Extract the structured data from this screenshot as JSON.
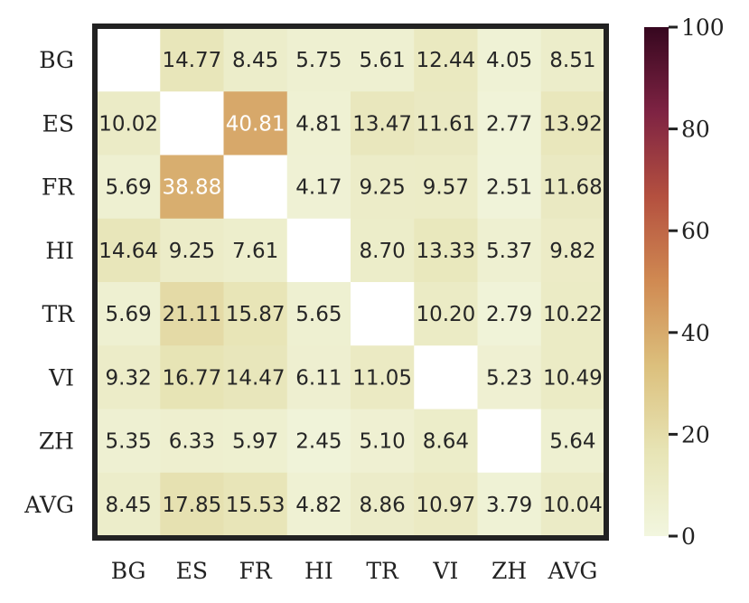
{
  "chart_data": {
    "type": "heatmap",
    "title": "",
    "xlabel": "",
    "ylabel": "",
    "rows": [
      "BG",
      "ES",
      "FR",
      "HI",
      "TR",
      "VI",
      "ZH",
      "AVG"
    ],
    "cols": [
      "BG",
      "ES",
      "FR",
      "HI",
      "TR",
      "VI",
      "ZH",
      "AVG"
    ],
    "values": [
      [
        null,
        14.77,
        8.45,
        5.75,
        5.61,
        12.44,
        4.05,
        8.51
      ],
      [
        10.02,
        null,
        40.81,
        4.81,
        13.47,
        11.61,
        2.77,
        13.92
      ],
      [
        5.69,
        38.88,
        null,
        4.17,
        9.25,
        9.57,
        2.51,
        11.68
      ],
      [
        14.64,
        9.25,
        7.61,
        null,
        8.7,
        13.33,
        5.37,
        9.82
      ],
      [
        5.69,
        21.11,
        15.87,
        5.65,
        null,
        10.2,
        2.79,
        10.22
      ],
      [
        9.32,
        16.77,
        14.47,
        6.11,
        11.05,
        null,
        5.23,
        10.49
      ],
      [
        5.35,
        6.33,
        5.97,
        2.45,
        5.1,
        8.64,
        null,
        5.64
      ],
      [
        8.45,
        17.85,
        15.53,
        4.82,
        8.86,
        10.97,
        3.79,
        10.04
      ]
    ],
    "value_labels": [
      [
        null,
        "14.77",
        "8.45",
        "5.75",
        "5.61",
        "12.44",
        "4.05",
        "8.51"
      ],
      [
        "10.02",
        null,
        "40.81",
        "4.81",
        "13.47",
        "11.61",
        "2.77",
        "13.92"
      ],
      [
        "5.69",
        "38.88",
        null,
        "4.17",
        "9.25",
        "9.57",
        "2.51",
        "11.68"
      ],
      [
        "14.64",
        "9.25",
        "7.61",
        null,
        "8.70",
        "13.33",
        "5.37",
        "9.82"
      ],
      [
        "5.69",
        "21.11",
        "15.87",
        "5.65",
        null,
        "10.20",
        "2.79",
        "10.22"
      ],
      [
        "9.32",
        "16.77",
        "14.47",
        "6.11",
        "11.05",
        null,
        "5.23",
        "10.49"
      ],
      [
        "5.35",
        "6.33",
        "5.97",
        "2.45",
        "5.10",
        "8.64",
        null,
        "5.64"
      ],
      [
        "8.45",
        "17.85",
        "15.53",
        "4.82",
        "8.86",
        "10.97",
        "3.79",
        "10.04"
      ]
    ],
    "colorbar": {
      "range": [
        0,
        100
      ],
      "ticks": [
        0,
        20,
        40,
        60,
        80,
        100
      ],
      "colors": [
        "#f2f6df",
        "#e7e4b5",
        "#dcc07d",
        "#d08a52",
        "#b4503f",
        "#7e2343",
        "#36071f"
      ]
    },
    "grid": false,
    "legend": "none"
  }
}
